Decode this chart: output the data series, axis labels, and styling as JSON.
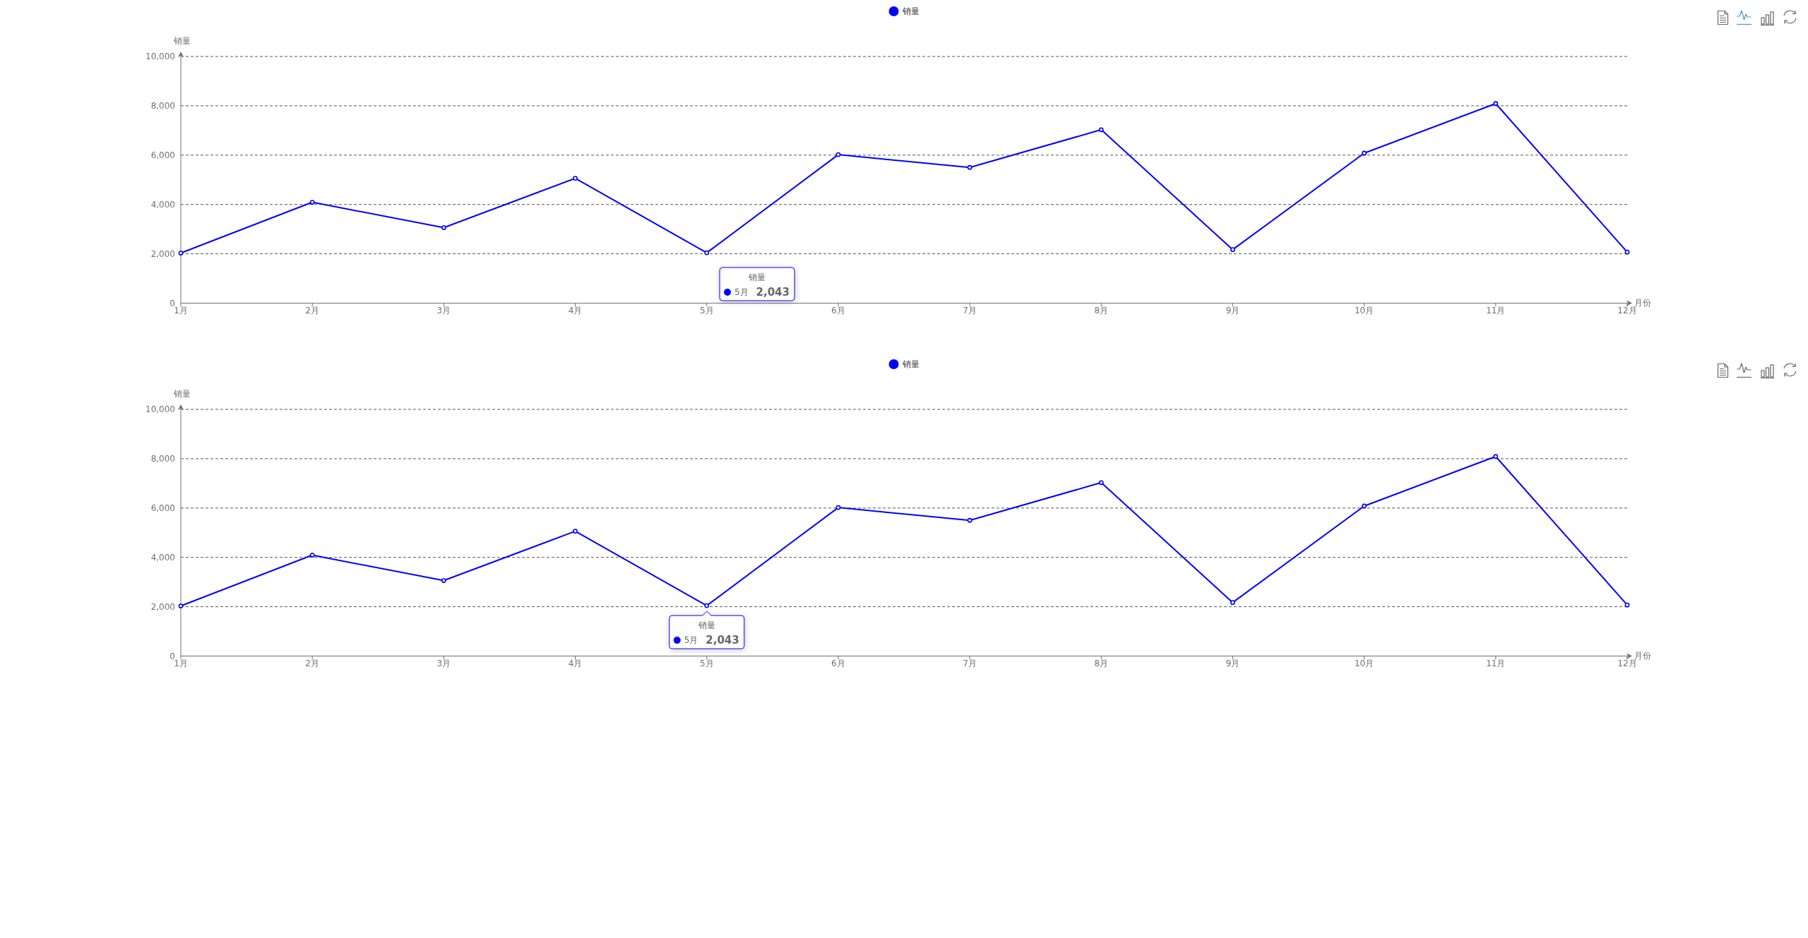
{
  "chart_data": [
    {
      "type": "line",
      "categories": [
        "1月",
        "2月",
        "3月",
        "4月",
        "5月",
        "6月",
        "7月",
        "8月",
        "9月",
        "10月",
        "11月",
        "12月"
      ],
      "series": [
        {
          "name": "销量",
          "color": "#0000ff",
          "values": [
            2030,
            4090,
            3060,
            5060,
            2043,
            6020,
            5500,
            7030,
            2170,
            6080,
            8090,
            2070
          ]
        }
      ],
      "xlabel": "月份",
      "ylabel": "销量",
      "ylim": [
        0,
        10000
      ],
      "yticks": [
        0,
        {
          "value": 2000,
          "label": "2,000"
        },
        {
          "value": 4000,
          "label": "4,000"
        },
        {
          "value": 6000,
          "label": "6,000"
        },
        {
          "value": 8000,
          "label": "8,000"
        },
        {
          "value": 10000,
          "label": "10,000"
        }
      ],
      "grid": "y",
      "legend": "top",
      "marker": "circle",
      "line_style": "solid",
      "annotations": [
        "销量",
        "5月",
        "2,043"
      ]
    },
    {
      "type": "line",
      "categories": [
        "1月",
        "2月",
        "3月",
        "4月",
        "5月",
        "6月",
        "7月",
        "8月",
        "9月",
        "10月",
        "11月",
        "12月"
      ],
      "series": [
        {
          "name": "销量",
          "color": "#0000ff",
          "values": [
            2030,
            4090,
            3060,
            5060,
            2043,
            6020,
            5500,
            7030,
            2170,
            6080,
            8090,
            2070
          ],
          "value_labels": [
            null,
            null,
            null,
            null,
            "2,043",
            null,
            null,
            null,
            null,
            null,
            null,
            null
          ]
        }
      ],
      "xlabel": "月份",
      "ylabel": "销量",
      "ylim": [
        0,
        10000
      ],
      "yticks": [
        0,
        {
          "value": 2000,
          "label": "2,000"
        },
        {
          "value": 4000,
          "label": "4,000"
        },
        {
          "value": 6000,
          "label": "6,000"
        },
        {
          "value": 8000,
          "label": "8,000"
        },
        {
          "value": 10000,
          "label": "10,000"
        }
      ],
      "grid": "y",
      "legend": "top",
      "marker": "circle",
      "line_style": "solid",
      "annotations": [
        "销量",
        "5月"
      ]
    }
  ]
}
